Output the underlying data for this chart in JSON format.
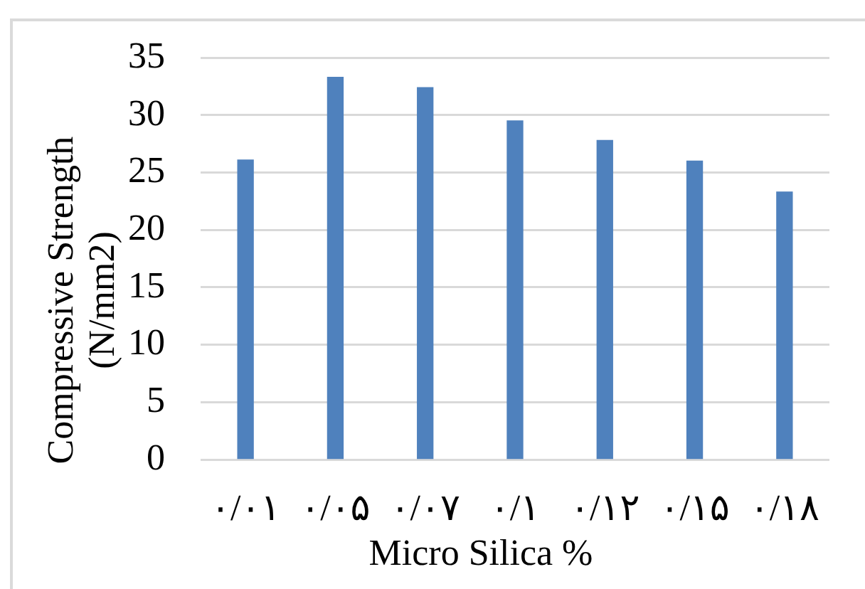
{
  "chart_data": {
    "type": "bar",
    "xlabel": "Micro Silica %",
    "ylabel": "Compressive Strength (N/mm2)",
    "categories": [
      "۰/۰۱",
      "۰/۰۵",
      "۰/۰۷",
      "۰/۱",
      "۰/۱۲",
      "۰/۱۵",
      "۰/۱۸"
    ],
    "values": [
      26.1,
      33.3,
      32.4,
      29.5,
      27.8,
      26.0,
      23.3
    ],
    "color": "#4f81bd",
    "ylim": [
      0,
      35
    ],
    "yticks": [
      0,
      5,
      10,
      15,
      20,
      25,
      30,
      35
    ],
    "grid": "y"
  }
}
